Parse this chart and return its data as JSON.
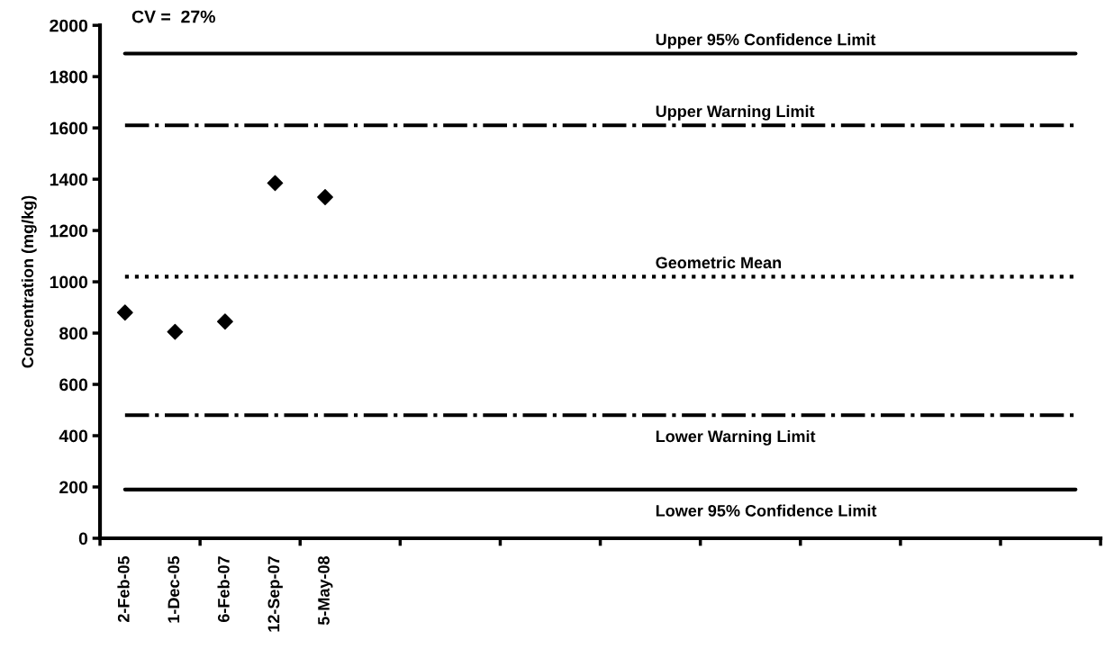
{
  "chart_data": {
    "type": "scatter",
    "ylabel": "Concentration (mg/kg)",
    "categories": [
      "2-Feb-05",
      "1-Dec-05",
      "6-Feb-07",
      "12-Sep-07",
      "5-May-08",
      null,
      null,
      null,
      null,
      null,
      null,
      null,
      null,
      null,
      null,
      null,
      null,
      null,
      null,
      null
    ],
    "series": [
      {
        "color": "#000000",
        "values": [
          880,
          805,
          845,
          1385,
          1330,
          null,
          null,
          null,
          null,
          null,
          null,
          null,
          null,
          null,
          null,
          null,
          null,
          null,
          null,
          null
        ]
      }
    ],
    "marker": "diamond",
    "ylim": [
      0,
      2000
    ],
    "yticks": [
      0,
      200,
      400,
      600,
      800,
      1000,
      1200,
      1400,
      1600,
      1800,
      2000
    ],
    "ref_lines": [
      {
        "axis": "y",
        "value": 1890,
        "label": "Upper 95% Confidence Limit",
        "color": "#000000",
        "line_style": "solid"
      },
      {
        "axis": "y",
        "value": 1610,
        "label": "Upper Warning Limit",
        "color": "#000000",
        "line_style": "dashdot"
      },
      {
        "axis": "y",
        "value": 1020,
        "label": "Geometric Mean",
        "color": "#000000",
        "line_style": "dotted"
      },
      {
        "axis": "y",
        "value": 480,
        "label": "Lower Warning Limit",
        "color": "#000000",
        "line_style": "dashdot"
      },
      {
        "axis": "y",
        "value": 190,
        "label": "Lower 95% Confidence Limit",
        "color": "#000000",
        "line_style": "solid"
      }
    ],
    "annotations": [
      "CV =  27%"
    ],
    "grid": false,
    "legend": false
  }
}
